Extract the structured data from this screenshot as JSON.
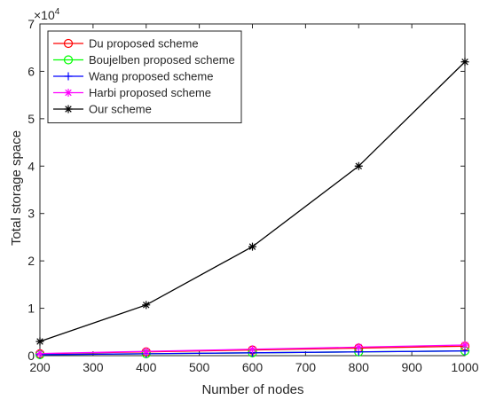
{
  "chart_data": {
    "type": "line",
    "xlabel": "Number of nodes",
    "ylabel": "Total storage space",
    "y_exponent_label": "×10",
    "y_exponent_power": "4",
    "xlim": [
      200,
      1000
    ],
    "ylim": [
      0,
      70000
    ],
    "x_ticks": [
      200,
      300,
      400,
      500,
      600,
      700,
      800,
      900,
      1000
    ],
    "y_ticks": [
      0,
      10000,
      20000,
      30000,
      40000,
      50000,
      60000,
      70000
    ],
    "y_tick_labels": [
      "0",
      "1",
      "2",
      "3",
      "4",
      "5",
      "6",
      "7"
    ],
    "legend_position": "top-left",
    "grid": false,
    "series": [
      {
        "name": "Du proposed scheme",
        "color": "#ff0000",
        "marker": "circle",
        "x": [
          200,
          400,
          600,
          800,
          1000
        ],
        "y": [
          400,
          800,
          1200,
          1600,
          2000
        ]
      },
      {
        "name": "Boujelben proposed scheme",
        "color": "#00ff00",
        "marker": "circle",
        "x": [
          200,
          400,
          600,
          800,
          1000
        ],
        "y": [
          200,
          400,
          600,
          800,
          1000
        ]
      },
      {
        "name": "Wang proposed scheme",
        "color": "#0000ff",
        "marker": "plus",
        "x": [
          200,
          400,
          600,
          800,
          1000
        ],
        "y": [
          200,
          400,
          600,
          800,
          1000
        ]
      },
      {
        "name": "Harbi proposed scheme",
        "color": "#ff00ff",
        "marker": "asterisk",
        "x": [
          200,
          400,
          600,
          800,
          1000
        ],
        "y": [
          450,
          900,
          1350,
          1800,
          2250
        ]
      },
      {
        "name": "Our scheme",
        "color": "#000000",
        "marker": "asterisk",
        "x": [
          200,
          400,
          600,
          800,
          1000
        ],
        "y": [
          3000,
          10700,
          23000,
          40000,
          62000
        ]
      }
    ]
  }
}
